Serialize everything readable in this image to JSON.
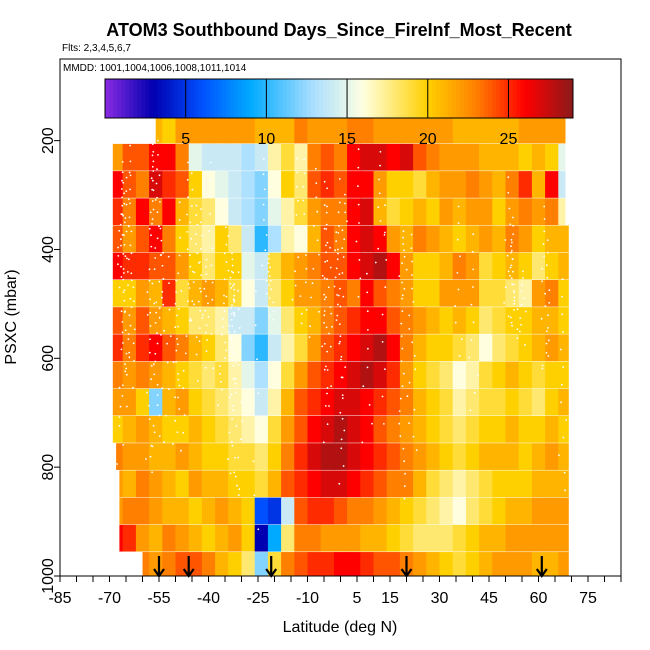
{
  "chart_data": {
    "type": "heatmap",
    "title": "ATOM3 Southbound Days_Since_FireInf_Most_Recent",
    "subtitle": "Flts: 2,3,4,5,6,7",
    "annotation": "MMDD: 1001,1004,1006,1008,1011,1014",
    "xlabel": "Latitude (deg N)",
    "ylabel": "PSXC (mbar)",
    "xlim": [
      -85,
      85
    ],
    "ylim": [
      1000,
      50
    ],
    "x_ticks": [
      -85,
      -70,
      -55,
      -40,
      -25,
      -10,
      5,
      15,
      30,
      45,
      60,
      75
    ],
    "x_tick_labels": [
      "-85",
      "-70",
      "-55",
      "-40",
      "-25",
      "-10",
      "5",
      "15",
      "30",
      "45",
      "60",
      "75"
    ],
    "y_ticks": [
      200,
      400,
      600,
      800,
      1000
    ],
    "y_tick_labels": [
      "200",
      "400",
      "600",
      "800",
      "1000"
    ],
    "colorbar": {
      "range": [
        0,
        29
      ],
      "ticks": [
        5,
        10,
        15,
        20,
        25
      ],
      "tick_labels": [
        "5",
        "10",
        "15",
        "20",
        "25"
      ],
      "stops": [
        {
          "v": 0,
          "c": "#8a2be2"
        },
        {
          "v": 3,
          "c": "#0000b0"
        },
        {
          "v": 6,
          "c": "#0050ff"
        },
        {
          "v": 9,
          "c": "#00aaff"
        },
        {
          "v": 13,
          "c": "#aee0ff"
        },
        {
          "v": 16,
          "c": "#ffffe0"
        },
        {
          "v": 20,
          "c": "#ffd000"
        },
        {
          "v": 23,
          "c": "#ff8000"
        },
        {
          "v": 26,
          "c": "#ff0000"
        },
        {
          "v": 29,
          "c": "#8b1a1a"
        }
      ]
    },
    "profile_latitudes": [
      -55,
      -46,
      -21,
      20,
      61
    ],
    "grid": false,
    "legend": "colorbar-top",
    "pressure_levels": [
      180,
      230,
      280,
      330,
      380,
      430,
      480,
      530,
      580,
      630,
      680,
      730,
      780,
      830,
      880,
      930,
      980
    ],
    "lat_bins": [
      -68,
      -64,
      -60,
      -56,
      -52,
      -48,
      -44,
      -40,
      -36,
      -32,
      -28,
      -24,
      -20,
      -16,
      -12,
      -8,
      -4,
      0,
      4,
      8,
      12,
      16,
      20,
      24,
      28,
      32,
      36,
      40,
      44,
      48,
      52,
      56,
      60,
      64,
      68
    ],
    "rows": [
      {
        "p": 180,
        "lat_min": -56,
        "lat_max": 68,
        "values": [
          21,
          21,
          21,
          21,
          20,
          22,
          22,
          22,
          22,
          22,
          22,
          21,
          21,
          21,
          23,
          22,
          22,
          22,
          23,
          23,
          22,
          22,
          22,
          22,
          22,
          22,
          21,
          21,
          21,
          21,
          21,
          22,
          22,
          22,
          22
        ]
      },
      {
        "p": 230,
        "lat_min": -69,
        "lat_max": 68,
        "values": [
          22,
          24,
          24,
          26,
          26,
          23,
          15,
          14,
          14,
          14,
          13,
          14,
          17,
          19,
          17,
          23,
          24,
          23,
          26,
          27,
          27,
          26,
          27,
          24,
          23,
          22,
          22,
          22,
          21,
          21,
          21,
          20,
          21,
          20,
          15
        ]
      },
      {
        "p": 280,
        "lat_min": -69,
        "lat_max": 68,
        "values": [
          26,
          24,
          23,
          27,
          25,
          24,
          20,
          16,
          15,
          14,
          13,
          12,
          16,
          20,
          18,
          24,
          25,
          24,
          26,
          26,
          22,
          20,
          20,
          19,
          21,
          22,
          22,
          23,
          22,
          21,
          23,
          25,
          21,
          26,
          14
        ]
      },
      {
        "p": 330,
        "lat_min": -69,
        "lat_max": 68,
        "values": [
          25,
          23,
          26,
          23,
          26,
          21,
          19,
          18,
          16,
          14,
          13,
          12,
          15,
          17,
          19,
          22,
          23,
          23,
          26,
          27,
          21,
          19,
          20,
          21,
          20,
          22,
          21,
          22,
          22,
          20,
          22,
          23,
          22,
          23,
          17
        ]
      },
      {
        "p": 380,
        "lat_min": -69,
        "lat_max": 69,
        "values": [
          24,
          22,
          24,
          26,
          23,
          20,
          18,
          17,
          20,
          18,
          14,
          10,
          13,
          17,
          16,
          21,
          24,
          23,
          26,
          27,
          26,
          22,
          21,
          23,
          22,
          21,
          20,
          21,
          22,
          21,
          23,
          22,
          20,
          21,
          21
        ]
      },
      {
        "p": 430,
        "lat_min": -69,
        "lat_max": 69,
        "values": [
          26,
          25,
          25,
          24,
          24,
          22,
          20,
          18,
          20,
          20,
          15,
          14,
          19,
          21,
          22,
          23,
          24,
          24,
          26,
          27,
          28,
          26,
          22,
          20,
          20,
          21,
          23,
          22,
          19,
          20,
          21,
          20,
          18,
          20,
          21
        ]
      },
      {
        "p": 480,
        "lat_min": -69,
        "lat_max": 69,
        "values": [
          20,
          20,
          22,
          21,
          25,
          19,
          21,
          22,
          21,
          19,
          16,
          14,
          18,
          20,
          22,
          22,
          23,
          24,
          23,
          26,
          24,
          23,
          22,
          20,
          20,
          22,
          22,
          22,
          19,
          19,
          18,
          17,
          22,
          23,
          20
        ]
      },
      {
        "p": 530,
        "lat_min": -69,
        "lat_max": 69,
        "values": [
          24,
          22,
          24,
          22,
          21,
          20,
          18,
          18,
          17,
          14,
          14,
          12,
          15,
          18,
          20,
          21,
          23,
          24,
          25,
          26,
          26,
          24,
          23,
          22,
          21,
          20,
          21,
          20,
          18,
          19,
          20,
          20,
          21,
          21,
          20
        ]
      },
      {
        "p": 580,
        "lat_min": -69,
        "lat_max": 69,
        "values": [
          25,
          23,
          25,
          26,
          24,
          23,
          21,
          20,
          18,
          16,
          12,
          10,
          14,
          17,
          19,
          22,
          24,
          25,
          26,
          27,
          28,
          26,
          23,
          21,
          20,
          20,
          19,
          18,
          16,
          18,
          19,
          20,
          21,
          22,
          21
        ]
      },
      {
        "p": 630,
        "lat_min": -69,
        "lat_max": 69,
        "values": [
          23,
          22,
          23,
          22,
          21,
          20,
          19,
          18,
          19,
          17,
          15,
          13,
          16,
          19,
          22,
          24,
          25,
          26,
          27,
          28,
          27,
          25,
          22,
          20,
          19,
          18,
          16,
          17,
          19,
          20,
          21,
          20,
          19,
          20,
          20
        ]
      },
      {
        "p": 680,
        "lat_min": -69,
        "lat_max": 69,
        "values": [
          22,
          22,
          20,
          12,
          21,
          22,
          20,
          19,
          18,
          17,
          16,
          14,
          17,
          21,
          24,
          25,
          26,
          27,
          27,
          26,
          25,
          24,
          23,
          21,
          20,
          19,
          17,
          18,
          19,
          19,
          20,
          19,
          18,
          20,
          21
        ]
      },
      {
        "p": 730,
        "lat_min": -69,
        "lat_max": 69,
        "values": [
          20,
          21,
          22,
          21,
          20,
          20,
          21,
          20,
          19,
          18,
          17,
          16,
          19,
          22,
          24,
          26,
          27,
          28,
          27,
          26,
          24,
          23,
          22,
          21,
          20,
          19,
          18,
          19,
          20,
          20,
          21,
          20,
          20,
          21,
          20
        ]
      },
      {
        "p": 780,
        "lat_min": -68,
        "lat_max": 69,
        "values": [
          23,
          22,
          22,
          21,
          21,
          22,
          21,
          20,
          20,
          19,
          19,
          18,
          20,
          23,
          25,
          27,
          28,
          28,
          27,
          26,
          25,
          24,
          23,
          22,
          21,
          20,
          19,
          20,
          21,
          21,
          21,
          20,
          21,
          22,
          21
        ]
      },
      {
        "p": 830,
        "lat_min": -67,
        "lat_max": 69,
        "values": [
          22,
          21,
          23,
          22,
          21,
          20,
          22,
          21,
          21,
          20,
          20,
          19,
          21,
          24,
          25,
          26,
          27,
          27,
          26,
          25,
          24,
          23,
          23,
          21,
          19,
          18,
          17,
          18,
          19,
          20,
          20,
          20,
          21,
          21,
          21
        ]
      },
      {
        "p": 880,
        "lat_min": -67,
        "lat_max": 69,
        "values": [
          22,
          23,
          23,
          22,
          21,
          21,
          20,
          21,
          22,
          21,
          20,
          6,
          5,
          14,
          24,
          25,
          25,
          24,
          23,
          23,
          22,
          21,
          20,
          19,
          18,
          17,
          16,
          18,
          19,
          20,
          21,
          21,
          22,
          22,
          22
        ]
      },
      {
        "p": 930,
        "lat_min": -67,
        "lat_max": 69,
        "values": [
          26,
          25,
          22,
          21,
          23,
          22,
          21,
          20,
          21,
          22,
          20,
          3,
          9,
          18,
          23,
          23,
          22,
          22,
          22,
          21,
          21,
          20,
          19,
          18,
          18,
          18,
          19,
          20,
          21,
          21,
          22,
          22,
          22,
          22,
          22
        ]
      },
      {
        "p": 980,
        "lat_min": -60,
        "lat_max": 69,
        "values": [
          23,
          24,
          23,
          22,
          23,
          24,
          24,
          23,
          21,
          20,
          18,
          12,
          19,
          23,
          24,
          25,
          25,
          26,
          26,
          25,
          24,
          24,
          23,
          22,
          21,
          20,
          19,
          20,
          21,
          22,
          22,
          22,
          21,
          21,
          22
        ]
      }
    ]
  }
}
